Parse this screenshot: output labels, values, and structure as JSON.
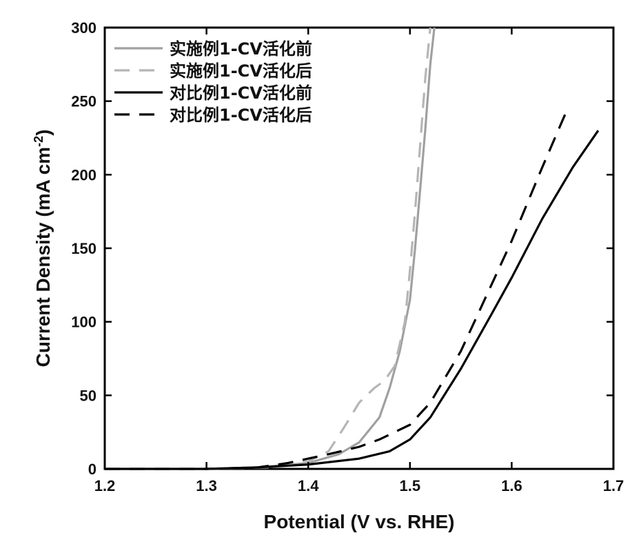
{
  "chart_data": {
    "type": "line",
    "xlabel": "Potential (V vs. RHE)",
    "ylabel": "Current Density (mA cm",
    "ylabel_sup": "-2",
    "ylabel_end": ")",
    "xlim": [
      1.2,
      1.7
    ],
    "ylim": [
      0,
      300
    ],
    "x_ticks": [
      1.2,
      1.3,
      1.4,
      1.5,
      1.6,
      1.7
    ],
    "x_tick_labels": [
      "1.2",
      "1.3",
      "1.4",
      "1.5",
      "1.6",
      "1.7"
    ],
    "y_ticks": [
      0,
      50,
      100,
      150,
      200,
      250,
      300
    ],
    "y_tick_labels": [
      "0",
      "50",
      "100",
      "150",
      "200",
      "250",
      "300"
    ],
    "grid": false,
    "legend_position": "top-left",
    "series": [
      {
        "name": "实施例1-CV活化前",
        "color": "#a0a0a0",
        "dash": "solid",
        "x": [
          1.2,
          1.3,
          1.35,
          1.4,
          1.43,
          1.45,
          1.47,
          1.48,
          1.49,
          1.5,
          1.505,
          1.51,
          1.515,
          1.52,
          1.524
        ],
        "y": [
          0,
          0,
          1,
          4,
          10,
          18,
          35,
          55,
          80,
          115,
          150,
          190,
          230,
          275,
          300
        ]
      },
      {
        "name": "实施例1-CV活化后",
        "color": "#b5b5b5",
        "dash": "dashed",
        "x": [
          1.2,
          1.3,
          1.36,
          1.4,
          1.42,
          1.435,
          1.45,
          1.465,
          1.475,
          1.485,
          1.495,
          1.5,
          1.505,
          1.51,
          1.515,
          1.52
        ],
        "y": [
          0,
          0,
          1,
          5,
          12,
          28,
          45,
          55,
          60,
          70,
          100,
          135,
          175,
          220,
          265,
          300
        ]
      },
      {
        "name": "对比例1-CV活化前",
        "color": "#000000",
        "dash": "solid",
        "x": [
          1.2,
          1.3,
          1.35,
          1.4,
          1.45,
          1.48,
          1.5,
          1.52,
          1.55,
          1.58,
          1.6,
          1.63,
          1.66,
          1.685
        ],
        "y": [
          0,
          0,
          1,
          3,
          7,
          12,
          20,
          35,
          68,
          105,
          130,
          170,
          205,
          230
        ]
      },
      {
        "name": "对比例1-CV活化后",
        "color": "#000000",
        "dash": "dashed",
        "x": [
          1.2,
          1.3,
          1.35,
          1.38,
          1.42,
          1.45,
          1.47,
          1.5,
          1.52,
          1.55,
          1.58,
          1.6,
          1.63,
          1.655
        ],
        "y": [
          0,
          0,
          1,
          4,
          10,
          15,
          20,
          30,
          45,
          80,
          125,
          155,
          205,
          245
        ]
      }
    ]
  }
}
